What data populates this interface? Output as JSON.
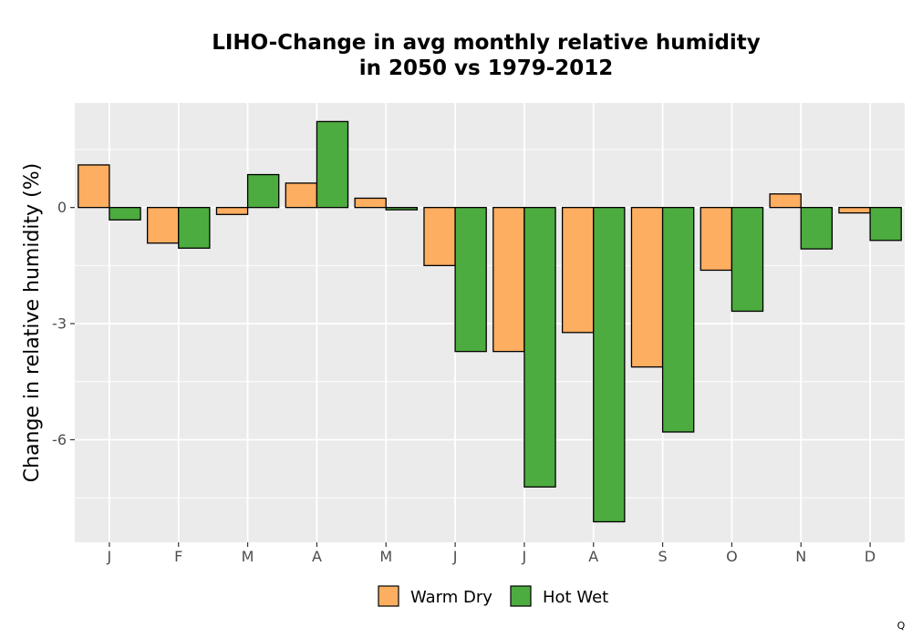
{
  "chart_data": {
    "type": "bar",
    "title_lines": [
      "LIHO-Change in avg monthly relative humidity",
      "in 2050 vs 1979-2012"
    ],
    "ylabel": "Change in relative humidity (%)",
    "xlabel": "",
    "categories": [
      "J",
      "F",
      "M",
      "A",
      "M",
      "J",
      "J",
      "A",
      "S",
      "O",
      "N",
      "D"
    ],
    "series": [
      {
        "name": "Warm Dry",
        "color": "#FDAE61",
        "values": [
          1.1,
          -0.92,
          -0.18,
          0.63,
          0.24,
          -1.5,
          -3.72,
          -3.23,
          -4.12,
          -1.62,
          0.35,
          -0.14
        ]
      },
      {
        "name": "Hot Wet",
        "color": "#4DAC3F",
        "values": [
          -0.32,
          -1.05,
          0.85,
          2.22,
          -0.06,
          -3.72,
          -7.22,
          -8.12,
          -5.8,
          -2.68,
          -1.07,
          -0.85
        ]
      }
    ],
    "yticks": [
      0,
      -3,
      -6
    ],
    "ytick_labels": [
      "0",
      "-3",
      "-6"
    ],
    "ylim": [
      -8.65,
      2.7
    ],
    "grid": true,
    "legend_position": "bottom",
    "corner_note": "Q"
  }
}
